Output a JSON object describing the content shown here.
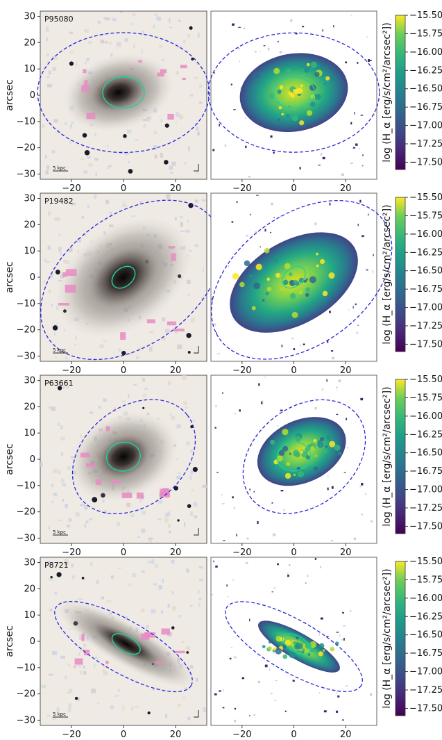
{
  "figure": {
    "rows": [
      {
        "id": "P95080",
        "scalebar_label": "5 kpc",
        "outer_ellipse": {
          "cx": 0,
          "cy": 1,
          "rx": 33,
          "ry": 23,
          "angle": 0
        },
        "inner_ellipse": {
          "cx": 0,
          "cy": 1,
          "rx": 8,
          "ry": 6,
          "angle": 0
        },
        "galaxy_core": {
          "cx": -2,
          "cy": 1,
          "rx": 12,
          "ry": 8,
          "angle": -15
        },
        "halpha_extent": {
          "cx": 0,
          "cy": 1,
          "rx": 21,
          "ry": 15,
          "angle": -10
        }
      },
      {
        "id": "P19482",
        "scalebar_label": "5 kpc",
        "outer_ellipse": {
          "cx": 3,
          "cy": -1,
          "rx": 39,
          "ry": 25,
          "angle": -36
        },
        "inner_ellipse": {
          "cx": 0,
          "cy": 0,
          "rx": 5,
          "ry": 3.5,
          "angle": -40
        },
        "galaxy_core": {
          "cx": 0,
          "cy": 0,
          "rx": 16,
          "ry": 11,
          "angle": -35
        },
        "halpha_extent": {
          "cx": 0,
          "cy": -2,
          "rx": 27,
          "ry": 16,
          "angle": -30
        }
      },
      {
        "id": "P63661",
        "scalebar_label": "5 kpc",
        "outer_ellipse": {
          "cx": 4,
          "cy": 1,
          "rx": 26,
          "ry": 19,
          "angle": -38
        },
        "inner_ellipse": {
          "cx": 0,
          "cy": 1,
          "rx": 6.5,
          "ry": 5.5,
          "angle": -10
        },
        "galaxy_core": {
          "cx": 0,
          "cy": 1,
          "rx": 12,
          "ry": 9,
          "angle": -25
        },
        "halpha_extent": {
          "cx": 3,
          "cy": 3,
          "rx": 18,
          "ry": 12,
          "angle": -25
        }
      },
      {
        "id": "P8721",
        "scalebar_label": "5 kpc",
        "outer_ellipse": {
          "cx": 0,
          "cy": -2,
          "rx": 30,
          "ry": 10,
          "angle": 30
        },
        "inner_ellipse": {
          "cx": 1,
          "cy": -1,
          "rx": 6,
          "ry": 3,
          "angle": 30
        },
        "galaxy_core": {
          "cx": 1,
          "cy": -1,
          "rx": 17,
          "ry": 4.5,
          "angle": 30
        },
        "halpha_extent": {
          "cx": 2,
          "cy": -2,
          "rx": 18,
          "ry": 5,
          "angle": 30
        }
      }
    ],
    "x_ticks": [
      "−20",
      "0",
      "20"
    ],
    "y_ticks": [
      "30",
      "20",
      "10",
      "0",
      "−10",
      "−20",
      "−30"
    ],
    "ylabel": "arcsec",
    "xlabel": "arcsec",
    "colorbar": {
      "ticks": [
        "−15.50",
        "−15.75",
        "−16.00",
        "−16.25",
        "−16.50",
        "−16.75",
        "−17.00",
        "−17.25",
        "−17.50"
      ],
      "label": "log (H_α [erg/s/cm²/arcsec²])"
    }
  },
  "chart_data": {
    "type": "heatmap",
    "panels": [
      "RGB image with ellipses",
      "Hα surface brightness map"
    ],
    "galaxies": [
      "P95080",
      "P19482",
      "P63661",
      "P8721"
    ],
    "axis_range_arcsec": [
      -32,
      32
    ],
    "colorbar_range": [
      -17.6,
      -15.5
    ],
    "colormap": "viridis",
    "outer_ellipse_color": "#2626d9",
    "inner_ellipse_color": "#20d0a0",
    "tail_mask_color": "#e68bc3"
  }
}
